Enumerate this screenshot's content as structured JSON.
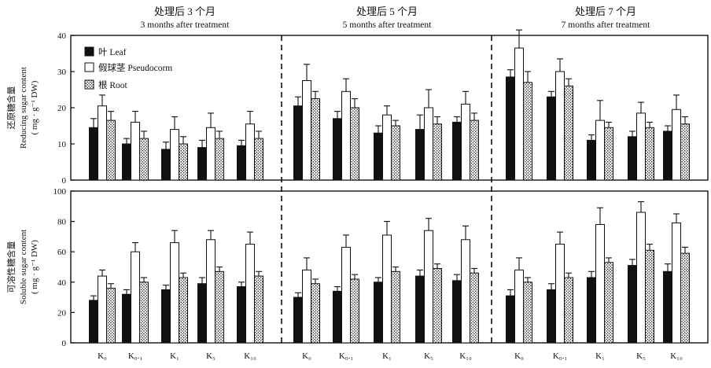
{
  "chart_data": {
    "type": "bar",
    "periods": [
      {
        "title_cn": "处理后 3 个月",
        "title_en": "3 months after treatment"
      },
      {
        "title_cn": "处理后 5 个月",
        "title_en": "5 months after treatment"
      },
      {
        "title_cn": "处理后 7 个月",
        "title_en": "7 months after treatment"
      }
    ],
    "categories": [
      "K₀",
      "K₀.₁",
      "K₁",
      "K₅",
      "K₁₀"
    ],
    "series": [
      {
        "name": "叶 Leaf",
        "fill": "#111111"
      },
      {
        "name": "假球茎 Pseudocorm",
        "fill": "#ffffff"
      },
      {
        "name": "根 Root",
        "fill": "dotted"
      }
    ],
    "panels": [
      {
        "ylabel_cn": "还原糖含量",
        "ylabel_en": "Reducing sugar content",
        "ylabel_unit": "( mg · g⁻¹ DW)",
        "ylim": [
          0,
          40
        ],
        "yticks": [
          "0",
          "10",
          "20",
          "30",
          "40"
        ],
        "values": [
          [
            [
              14.5,
              20.5,
              16.5
            ],
            [
              10,
              16,
              11.5
            ],
            [
              8.5,
              14,
              10
            ],
            [
              9,
              14.5,
              11.5
            ],
            [
              9.5,
              15.5,
              11.5
            ]
          ],
          [
            [
              20.5,
              27.5,
              22.5
            ],
            [
              17,
              24.5,
              20
            ],
            [
              13,
              18,
              15
            ],
            [
              14,
              20,
              15.5
            ],
            [
              16,
              21,
              16.5
            ]
          ],
          [
            [
              28.5,
              36.5,
              27
            ],
            [
              23,
              30,
              26
            ],
            [
              11,
              16.5,
              14.5
            ],
            [
              12,
              18.5,
              14.5
            ],
            [
              13.5,
              19.5,
              15.5
            ]
          ]
        ],
        "errors": [
          [
            [
              2.5,
              3,
              2.5
            ],
            [
              1.5,
              3,
              2
            ],
            [
              2,
              3.5,
              2
            ],
            [
              2,
              4,
              2
            ],
            [
              1.5,
              3.5,
              2
            ]
          ],
          [
            [
              2.5,
              4.5,
              2
            ],
            [
              2,
              3.5,
              2.5
            ],
            [
              2,
              2.5,
              1.5
            ],
            [
              4,
              5,
              2
            ],
            [
              1.5,
              3.5,
              2
            ]
          ],
          [
            [
              2,
              5,
              3
            ],
            [
              1.5,
              3.5,
              2
            ],
            [
              1.5,
              5.5,
              1.5
            ],
            [
              1.5,
              3,
              1.5
            ],
            [
              1.5,
              4,
              2
            ]
          ]
        ]
      },
      {
        "ylabel_cn": "可溶性糖含量",
        "ylabel_en": "Soluble sugar content",
        "ylabel_unit": "( mg · g⁻¹ DW)",
        "ylim": [
          0,
          100
        ],
        "yticks": [
          "0",
          "20",
          "40",
          "60",
          "80",
          "100"
        ],
        "values": [
          [
            [
              28,
              44,
              36
            ],
            [
              32,
              60,
              40
            ],
            [
              35,
              66,
              43
            ],
            [
              39,
              68,
              47
            ],
            [
              37,
              65,
              44
            ]
          ],
          [
            [
              30,
              48,
              39
            ],
            [
              34,
              63,
              42
            ],
            [
              40,
              71,
              47
            ],
            [
              44,
              74,
              49
            ],
            [
              41,
              68,
              46
            ]
          ],
          [
            [
              31,
              48,
              40
            ],
            [
              35,
              65,
              43
            ],
            [
              43,
              78,
              53
            ],
            [
              51,
              86,
              61
            ],
            [
              47,
              79,
              59
            ]
          ]
        ],
        "errors": [
          [
            [
              3,
              4,
              3
            ],
            [
              3,
              6,
              3
            ],
            [
              3,
              8,
              3
            ],
            [
              4,
              6,
              3
            ],
            [
              3,
              8,
              3
            ]
          ],
          [
            [
              3,
              8,
              3
            ],
            [
              3,
              8,
              3
            ],
            [
              3,
              9,
              3
            ],
            [
              4,
              8,
              3
            ],
            [
              4,
              9,
              3
            ]
          ],
          [
            [
              4,
              8,
              3
            ],
            [
              4,
              8,
              3
            ],
            [
              4,
              11,
              3
            ],
            [
              4,
              7,
              4
            ],
            [
              5,
              6,
              4
            ]
          ]
        ]
      }
    ]
  }
}
